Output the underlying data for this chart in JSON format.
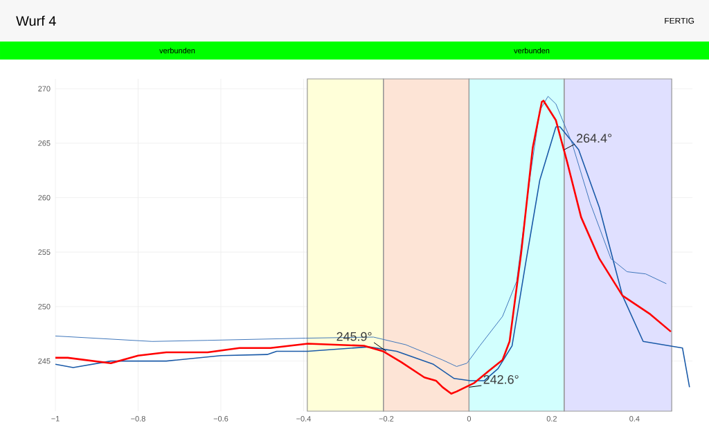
{
  "chart_data": {
    "type": "line",
    "title": "Wurf 4",
    "annotations": [
      "FERTIG",
      "verbunden",
      "verbunden",
      {
        "text": "245.9°",
        "x": -0.2,
        "y": 245.9
      },
      {
        "text": "242.6°",
        "x": 0,
        "y": 242.6
      },
      {
        "text": "264.4°",
        "x": 0.23,
        "y": 264.4
      }
    ],
    "series": [
      {
        "color": "#1a5aa8",
        "x": [
          -1,
          -0.957,
          -0.866,
          -0.732,
          -0.6,
          -0.488,
          -0.465,
          -0.39,
          -0.242,
          -0.175,
          -0.086,
          -0.036,
          0.003,
          0.037,
          0.07,
          0.104,
          0.137,
          0.171,
          0.21,
          0.22,
          0.265,
          0.315,
          0.371,
          0.421,
          0.516,
          0.533
        ],
        "values": [
          244.7,
          244.4,
          245.0,
          245.0,
          245.5,
          245.6,
          245.9,
          245.9,
          246.3,
          245.9,
          244.7,
          243.4,
          243.2,
          243.2,
          244.3,
          246.4,
          254.0,
          261.6,
          266.5,
          266.5,
          264.4,
          259.1,
          251.0,
          246.8,
          246.2,
          242.6
        ]
      },
      {
        "color": "#3f76bb",
        "x": [
          -1,
          -0.766,
          -0.632,
          -0.395,
          -0.231,
          -0.153,
          -0.064,
          -0.03,
          -0.005,
          0.026,
          0.081,
          0.115,
          0.148,
          0.171,
          0.191,
          0.21,
          0.249,
          0.293,
          0.343,
          0.382,
          0.427,
          0.477
        ],
        "values": [
          247.3,
          246.8,
          246.9,
          247.1,
          247.2,
          246.5,
          245.1,
          244.5,
          244.8,
          246.4,
          249.1,
          252.3,
          262.0,
          268.0,
          269.3,
          268.6,
          265.0,
          259.5,
          254.4,
          253.2,
          253.0,
          252.1
        ]
      },
      {
        "color": "#ff0000",
        "x": [
          -1,
          -0.97,
          -0.866,
          -0.8,
          -0.732,
          -0.632,
          -0.555,
          -0.48,
          -0.39,
          -0.254,
          -0.208,
          -0.164,
          -0.108,
          -0.08,
          -0.064,
          -0.043,
          -0.03,
          0.013,
          0.048,
          0.081,
          0.098,
          0.126,
          0.154,
          0.176,
          0.18,
          0.21,
          0.237,
          0.271,
          0.315,
          0.371,
          0.438,
          0.488
        ],
        "values": [
          245.3,
          245.3,
          244.8,
          245.5,
          245.8,
          245.8,
          246.2,
          246.2,
          246.6,
          246.4,
          245.9,
          244.9,
          243.5,
          243.2,
          242.6,
          242.0,
          242.2,
          243.0,
          244.1,
          245.1,
          246.8,
          254.9,
          264.6,
          268.8,
          268.9,
          267.1,
          263.3,
          258.2,
          254.4,
          251.0,
          249.3,
          247.7
        ]
      }
    ],
    "xlim": [
      -1,
      0.54
    ],
    "ylim": [
      240.4,
      270.9
    ],
    "xticks": [
      {
        "value": -1,
        "label": "−1"
      },
      {
        "value": -0.8,
        "label": "−0.8"
      },
      {
        "value": -0.6,
        "label": "−0.6"
      },
      {
        "value": -0.4,
        "label": "−0.4"
      },
      {
        "value": -0.2,
        "label": "−0.2"
      },
      0,
      0.2,
      0.4
    ],
    "yticks": [
      245,
      250,
      255,
      260,
      265,
      270
    ],
    "bands": [
      {
        "axis": "x",
        "from": -0.391,
        "to": -0.207,
        "color": "#ffffd9"
      },
      {
        "axis": "x",
        "from": -0.207,
        "to": 0,
        "color": "#fde4d6"
      },
      {
        "axis": "x",
        "from": 0,
        "to": 0.23,
        "color": "#d2fffe"
      },
      {
        "axis": "x",
        "from": 0.23,
        "to": 0.49,
        "color": "#e0e0ff"
      }
    ],
    "grid": true,
    "marker": "none",
    "line_style": "solid"
  }
}
